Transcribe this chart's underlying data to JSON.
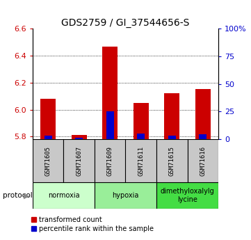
{
  "title": "GDS2759 / GI_37544656-S",
  "samples": [
    "GSM71605",
    "GSM71607",
    "GSM71609",
    "GSM71611",
    "GSM71615",
    "GSM71616"
  ],
  "transformed_counts": [
    6.08,
    5.81,
    6.47,
    6.05,
    6.12,
    6.15
  ],
  "percentile_ranks": [
    3.5,
    1.5,
    25.0,
    5.0,
    3.0,
    4.5
  ],
  "ylim_left": [
    5.78,
    6.6
  ],
  "ylim_right": [
    0,
    100
  ],
  "yticks_left": [
    5.8,
    6.0,
    6.2,
    6.4,
    6.6
  ],
  "yticks_right": [
    0,
    25,
    50,
    75,
    100
  ],
  "bar_bottom": 5.78,
  "groups": [
    {
      "label": "normoxia",
      "start": 0,
      "end": 1,
      "color": "#ccffcc"
    },
    {
      "label": "hypoxia",
      "start": 2,
      "end": 3,
      "color": "#99ee99"
    },
    {
      "label": "dimethyloxalylg\nlycine",
      "start": 4,
      "end": 5,
      "color": "#44dd44"
    }
  ],
  "bar_color_red": "#cc0000",
  "bar_color_blue": "#0000cc",
  "sample_box_color": "#c8c8c8",
  "left_axis_color": "#cc0000",
  "right_axis_color": "#0000cc",
  "title_fontsize": 10,
  "tick_fontsize": 8,
  "sample_fontsize": 6.5,
  "group_fontsize": 7,
  "legend_fontsize": 7
}
